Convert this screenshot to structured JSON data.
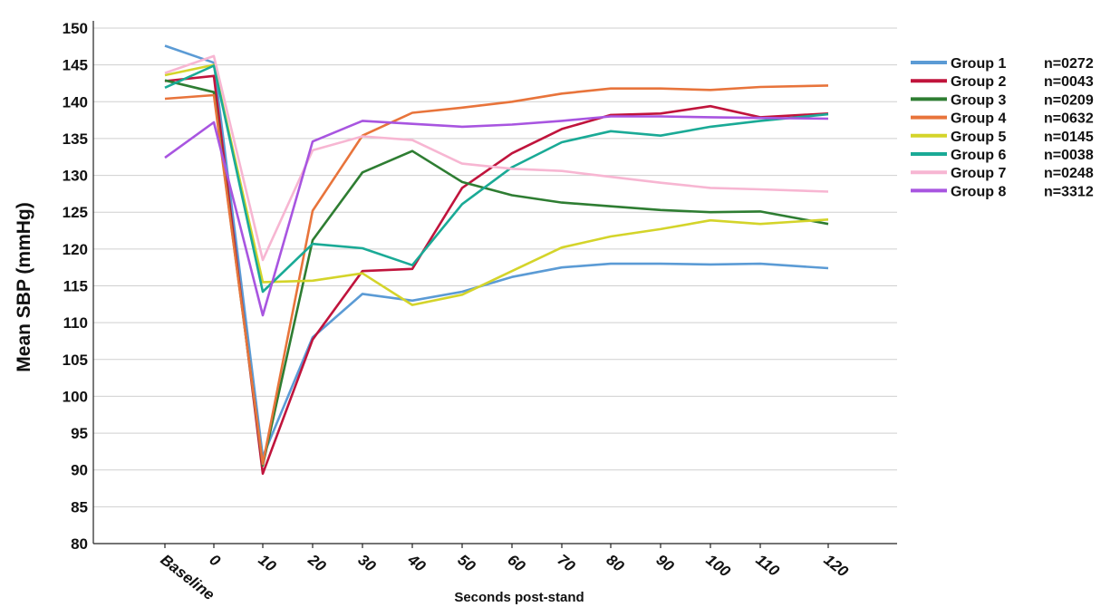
{
  "chart_data": {
    "type": "line",
    "title": "",
    "xlabel": "Seconds post-stand",
    "ylabel": "Mean SBP (mmHg)",
    "categories": [
      "Baseline",
      "0",
      "10",
      "20",
      "30",
      "40",
      "50",
      "60",
      "70",
      "80",
      "90",
      "100",
      "110",
      "120"
    ],
    "ylim": [
      80,
      150
    ],
    "yticks": [
      80,
      85,
      90,
      95,
      100,
      105,
      110,
      115,
      120,
      125,
      130,
      135,
      140,
      145,
      150
    ],
    "grid": true,
    "legend_position": "right",
    "series": [
      {
        "name": "Group 1",
        "n": "n=0272",
        "color": "#5b9bd5",
        "values": [
          147.6,
          145.3,
          91.8,
          108.0,
          113.9,
          113.0,
          114.2,
          116.2,
          117.5,
          118.0,
          118.0,
          117.9,
          118.0,
          117.4
        ]
      },
      {
        "name": "Group 2",
        "n": "n=0043",
        "color": "#c0143c",
        "values": [
          142.8,
          143.5,
          89.5,
          107.7,
          117.0,
          117.3,
          128.3,
          133.0,
          136.3,
          138.2,
          138.4,
          139.4,
          137.9,
          138.4
        ]
      },
      {
        "name": "Group 3",
        "n": "n=0209",
        "color": "#2e7d32",
        "values": [
          142.9,
          141.3,
          90.6,
          121.2,
          130.4,
          133.3,
          129.1,
          127.3,
          126.3,
          125.8,
          125.3,
          125.0,
          125.1,
          123.4
        ]
      },
      {
        "name": "Group 4",
        "n": "n=0632",
        "color": "#e8743b",
        "values": [
          140.4,
          140.9,
          90.8,
          125.2,
          135.4,
          138.5,
          139.2,
          140.0,
          141.1,
          141.8,
          141.8,
          141.6,
          142.0,
          142.2
        ]
      },
      {
        "name": "Group 5",
        "n": "n=0145",
        "color": "#d4d42a",
        "values": [
          143.6,
          145.0,
          115.5,
          115.7,
          116.7,
          112.4,
          113.8,
          117.0,
          120.2,
          121.7,
          122.7,
          123.9,
          123.4,
          124.0
        ]
      },
      {
        "name": "Group 6",
        "n": "n=0038",
        "color": "#1aaa96",
        "values": [
          141.9,
          144.9,
          114.2,
          120.7,
          120.1,
          117.8,
          126.1,
          131.1,
          134.5,
          136.0,
          135.4,
          136.6,
          137.4,
          138.3
        ]
      },
      {
        "name": "Group 7",
        "n": "n=0248",
        "color": "#f7b6d2",
        "values": [
          143.9,
          146.2,
          118.5,
          133.4,
          135.3,
          134.8,
          131.6,
          130.9,
          130.6,
          129.8,
          129.0,
          128.3,
          128.1,
          127.8
        ]
      },
      {
        "name": "Group 8",
        "n": "n=3312",
        "color": "#a855e0",
        "values": [
          132.4,
          137.2,
          111.0,
          134.6,
          137.4,
          137.0,
          136.6,
          136.9,
          137.4,
          138.0,
          138.0,
          137.9,
          137.8,
          137.7
        ]
      }
    ]
  }
}
